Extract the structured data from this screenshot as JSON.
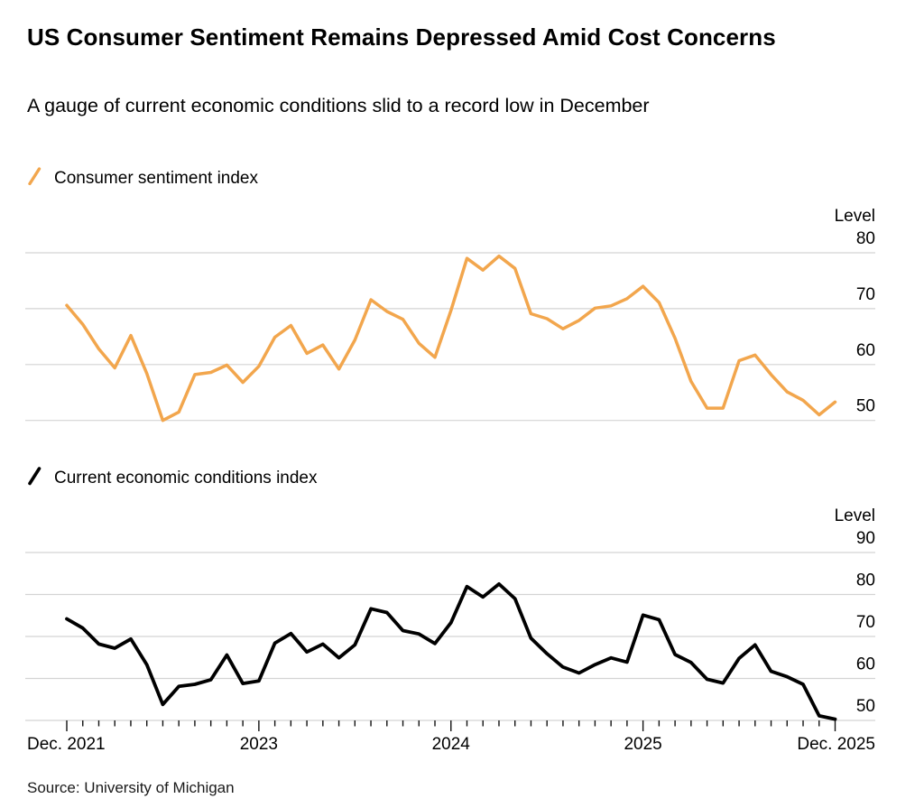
{
  "header": {
    "title": "US Consumer Sentiment Remains Depressed Amid Cost Concerns",
    "subtitle": "A gauge of current economic conditions slid to a record low in December"
  },
  "source": "Source: University of Michigan",
  "colors": {
    "sentiment_line": "#F2A64D",
    "conditions_line": "#000000",
    "gridline": "#D4D4D4",
    "tick": "#111111",
    "text": "#000000"
  },
  "chart_data": [
    {
      "type": "line",
      "title": "Consumer sentiment index",
      "unit_label": "Level",
      "frequency": "monthly",
      "start_month": "Dec 2021",
      "end_month": "Dec 2025",
      "ylim": [
        48,
        82
      ],
      "yticks": [
        80,
        70,
        60,
        50
      ],
      "grid": true,
      "legend_position": "above",
      "color": "#F2A64D",
      "x_months": [
        "2021-12",
        "2022-01",
        "2022-02",
        "2022-03",
        "2022-04",
        "2022-05",
        "2022-06",
        "2022-07",
        "2022-08",
        "2022-09",
        "2022-10",
        "2022-11",
        "2022-12",
        "2023-01",
        "2023-02",
        "2023-03",
        "2023-04",
        "2023-05",
        "2023-06",
        "2023-07",
        "2023-08",
        "2023-09",
        "2023-10",
        "2023-11",
        "2023-12",
        "2024-01",
        "2024-02",
        "2024-03",
        "2024-04",
        "2024-05",
        "2024-06",
        "2024-07",
        "2024-08",
        "2024-09",
        "2024-10",
        "2024-11",
        "2024-12",
        "2025-01",
        "2025-02",
        "2025-03",
        "2025-04",
        "2025-05",
        "2025-06",
        "2025-07",
        "2025-08",
        "2025-09",
        "2025-10",
        "2025-11",
        "2025-12"
      ],
      "values": [
        70.6,
        67.2,
        62.8,
        59.4,
        65.2,
        58.4,
        50.0,
        51.5,
        58.2,
        58.6,
        59.9,
        56.8,
        59.7,
        64.9,
        67.0,
        62.0,
        63.5,
        59.2,
        64.4,
        71.6,
        69.5,
        68.1,
        63.8,
        61.3,
        69.7,
        79.0,
        76.9,
        79.4,
        77.2,
        69.1,
        68.2,
        66.4,
        67.9,
        70.1,
        70.5,
        71.8,
        74.0,
        71.1,
        64.7,
        57.0,
        52.2,
        52.2,
        60.7,
        61.7,
        58.2,
        55.1,
        53.6,
        51.0,
        53.3
      ],
      "x_tick_labels": []
    },
    {
      "type": "line",
      "title": "Current economic conditions index",
      "unit_label": "Level",
      "frequency": "monthly",
      "start_month": "Dec 2021",
      "end_month": "Dec 2025",
      "ylim": [
        46,
        90
      ],
      "yticks": [
        90,
        80,
        70,
        60,
        50
      ],
      "grid": true,
      "legend_position": "above",
      "color": "#000000",
      "x_months": [
        "2021-12",
        "2022-01",
        "2022-02",
        "2022-03",
        "2022-04",
        "2022-05",
        "2022-06",
        "2022-07",
        "2022-08",
        "2022-09",
        "2022-10",
        "2022-11",
        "2022-12",
        "2023-01",
        "2023-02",
        "2023-03",
        "2023-04",
        "2023-05",
        "2023-06",
        "2023-07",
        "2023-08",
        "2023-09",
        "2023-10",
        "2023-11",
        "2023-12",
        "2024-01",
        "2024-02",
        "2024-03",
        "2024-04",
        "2024-05",
        "2024-06",
        "2024-07",
        "2024-08",
        "2024-09",
        "2024-10",
        "2024-11",
        "2024-12",
        "2025-01",
        "2025-02",
        "2025-03",
        "2025-04",
        "2025-05",
        "2025-06",
        "2025-07",
        "2025-08",
        "2025-09",
        "2025-10",
        "2025-11",
        "2025-12"
      ],
      "values": [
        74.2,
        72.0,
        68.2,
        67.2,
        69.4,
        63.3,
        53.8,
        58.1,
        58.6,
        59.7,
        65.6,
        58.8,
        59.4,
        68.4,
        70.7,
        66.3,
        68.2,
        64.9,
        68.0,
        76.6,
        75.7,
        71.4,
        70.6,
        68.3,
        73.3,
        81.9,
        79.4,
        82.5,
        79.0,
        69.6,
        65.9,
        62.7,
        61.3,
        63.3,
        64.9,
        63.9,
        75.1,
        74.0,
        65.7,
        63.8,
        59.8,
        58.9,
        64.8,
        68.0,
        61.7,
        60.4,
        58.6,
        51.1,
        50.3
      ],
      "x_tick_labels": [
        "Dec. 2021",
        "2023",
        "2024",
        "2025",
        "Dec. 2025"
      ]
    }
  ]
}
